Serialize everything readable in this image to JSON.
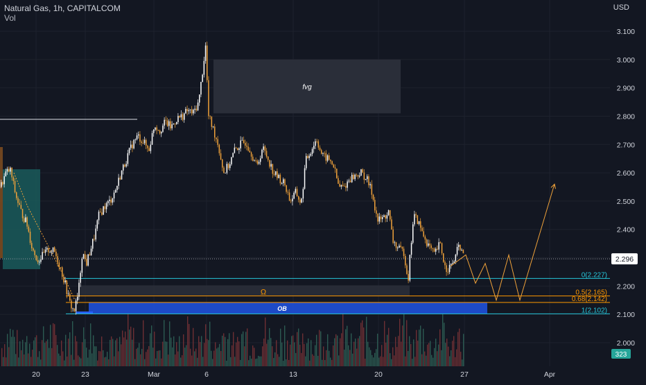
{
  "header": {
    "title": "Natural Gas, 1h, CAPITALCOM",
    "subtitle": "Vol",
    "currency": "USD"
  },
  "chart_data": {
    "type": "candlestick",
    "instrument": "Natural Gas",
    "timeframe": "1h",
    "source": "CAPITALCOM",
    "y_axis": {
      "ticks": [
        "3.100",
        "3.000",
        "2.900",
        "2.800",
        "2.700",
        "2.600",
        "2.500",
        "2.400",
        "2.300",
        "2.200",
        "2.100",
        "2.000"
      ],
      "range": [
        1.95,
        3.17
      ]
    },
    "x_axis": {
      "ticks": [
        "20",
        "23",
        "Mar",
        "6",
        "13",
        "20",
        "27",
        "Apr"
      ]
    },
    "price_path": [
      {
        "x": 0,
        "y": 2.55
      },
      {
        "x": 8,
        "y": 2.6
      },
      {
        "x": 14,
        "y": 2.61
      },
      {
        "x": 22,
        "y": 2.52
      },
      {
        "x": 30,
        "y": 2.46
      },
      {
        "x": 38,
        "y": 2.42
      },
      {
        "x": 46,
        "y": 2.33
      },
      {
        "x": 54,
        "y": 2.29
      },
      {
        "x": 62,
        "y": 2.31
      },
      {
        "x": 70,
        "y": 2.33
      },
      {
        "x": 78,
        "y": 2.32
      },
      {
        "x": 86,
        "y": 2.27
      },
      {
        "x": 94,
        "y": 2.2
      },
      {
        "x": 100,
        "y": 2.14
      },
      {
        "x": 106,
        "y": 2.11
      },
      {
        "x": 112,
        "y": 2.17
      },
      {
        "x": 118,
        "y": 2.32
      },
      {
        "x": 124,
        "y": 2.28
      },
      {
        "x": 130,
        "y": 2.33
      },
      {
        "x": 136,
        "y": 2.38
      },
      {
        "x": 142,
        "y": 2.45
      },
      {
        "x": 150,
        "y": 2.48
      },
      {
        "x": 158,
        "y": 2.5
      },
      {
        "x": 166,
        "y": 2.54
      },
      {
        "x": 174,
        "y": 2.6
      },
      {
        "x": 182,
        "y": 2.65
      },
      {
        "x": 190,
        "y": 2.7
      },
      {
        "x": 198,
        "y": 2.73
      },
      {
        "x": 206,
        "y": 2.71
      },
      {
        "x": 214,
        "y": 2.68
      },
      {
        "x": 222,
        "y": 2.77
      },
      {
        "x": 230,
        "y": 2.75
      },
      {
        "x": 238,
        "y": 2.78
      },
      {
        "x": 246,
        "y": 2.76
      },
      {
        "x": 254,
        "y": 2.79
      },
      {
        "x": 262,
        "y": 2.8
      },
      {
        "x": 270,
        "y": 2.82
      },
      {
        "x": 278,
        "y": 2.81
      },
      {
        "x": 286,
        "y": 2.85
      },
      {
        "x": 292,
        "y": 2.97
      },
      {
        "x": 296,
        "y": 3.05
      },
      {
        "x": 300,
        "y": 2.8
      },
      {
        "x": 306,
        "y": 2.76
      },
      {
        "x": 314,
        "y": 2.7
      },
      {
        "x": 322,
        "y": 2.6
      },
      {
        "x": 330,
        "y": 2.63
      },
      {
        "x": 338,
        "y": 2.68
      },
      {
        "x": 346,
        "y": 2.7
      },
      {
        "x": 354,
        "y": 2.71
      },
      {
        "x": 362,
        "y": 2.67
      },
      {
        "x": 370,
        "y": 2.62
      },
      {
        "x": 378,
        "y": 2.69
      },
      {
        "x": 386,
        "y": 2.65
      },
      {
        "x": 394,
        "y": 2.6
      },
      {
        "x": 402,
        "y": 2.58
      },
      {
        "x": 410,
        "y": 2.56
      },
      {
        "x": 418,
        "y": 2.5
      },
      {
        "x": 426,
        "y": 2.53
      },
      {
        "x": 434,
        "y": 2.49
      },
      {
        "x": 440,
        "y": 2.64
      },
      {
        "x": 448,
        "y": 2.68
      },
      {
        "x": 456,
        "y": 2.72
      },
      {
        "x": 464,
        "y": 2.66
      },
      {
        "x": 472,
        "y": 2.65
      },
      {
        "x": 480,
        "y": 2.63
      },
      {
        "x": 488,
        "y": 2.55
      },
      {
        "x": 496,
        "y": 2.55
      },
      {
        "x": 504,
        "y": 2.58
      },
      {
        "x": 512,
        "y": 2.59
      },
      {
        "x": 520,
        "y": 2.6
      },
      {
        "x": 528,
        "y": 2.58
      },
      {
        "x": 536,
        "y": 2.53
      },
      {
        "x": 544,
        "y": 2.43
      },
      {
        "x": 552,
        "y": 2.44
      },
      {
        "x": 560,
        "y": 2.46
      },
      {
        "x": 566,
        "y": 2.36
      },
      {
        "x": 574,
        "y": 2.33
      },
      {
        "x": 582,
        "y": 2.32
      },
      {
        "x": 588,
        "y": 2.22
      },
      {
        "x": 592,
        "y": 2.34
      },
      {
        "x": 596,
        "y": 2.45
      },
      {
        "x": 602,
        "y": 2.43
      },
      {
        "x": 610,
        "y": 2.38
      },
      {
        "x": 618,
        "y": 2.34
      },
      {
        "x": 626,
        "y": 2.31
      },
      {
        "x": 634,
        "y": 2.35
      },
      {
        "x": 642,
        "y": 2.26
      },
      {
        "x": 650,
        "y": 2.27
      },
      {
        "x": 656,
        "y": 2.3
      },
      {
        "x": 662,
        "y": 2.35
      },
      {
        "x": 668,
        "y": 2.3
      }
    ],
    "projection": [
      {
        "x": 650,
        "y": 2.27
      },
      {
        "x": 672,
        "y": 2.31
      },
      {
        "x": 686,
        "y": 2.21
      },
      {
        "x": 700,
        "y": 2.28
      },
      {
        "x": 716,
        "y": 2.15
      },
      {
        "x": 734,
        "y": 2.31
      },
      {
        "x": 750,
        "y": 2.15
      },
      {
        "x": 800,
        "y": 2.56
      }
    ],
    "current_price": "2.296",
    "fib_levels": [
      {
        "label": "0(2.227)",
        "value": 2.227,
        "color": "#26c6da"
      },
      {
        "label": "0.5(2.165)",
        "value": 2.165,
        "color": "#ff9800"
      },
      {
        "label": "0.68(2.142)",
        "value": 2.142,
        "color": "#ff9800"
      },
      {
        "label": "1(2.102)",
        "value": 2.102,
        "color": "#26c6da"
      }
    ],
    "zones": [
      {
        "label": "fvg",
        "y_top": 3.0,
        "y_bottom": 2.81,
        "color": "#2a2e39"
      },
      {
        "label": "OB",
        "y_top": 2.142,
        "y_bottom": 2.102,
        "color": "#1e4fd6"
      }
    ],
    "annotation_marker": "Ω",
    "volume_badge": "323",
    "colors": {
      "up": "#ffffff",
      "down": "#f0a23a",
      "background": "#131722",
      "grid": "#1e222d",
      "axis_text": "#d1d4dc",
      "fib_cyan": "#26c6da",
      "fib_orange": "#ff9800",
      "ob_blue": "#1e4fd6",
      "teal_box": "#1a5a5a",
      "volume_badge": "#26a69a"
    }
  }
}
